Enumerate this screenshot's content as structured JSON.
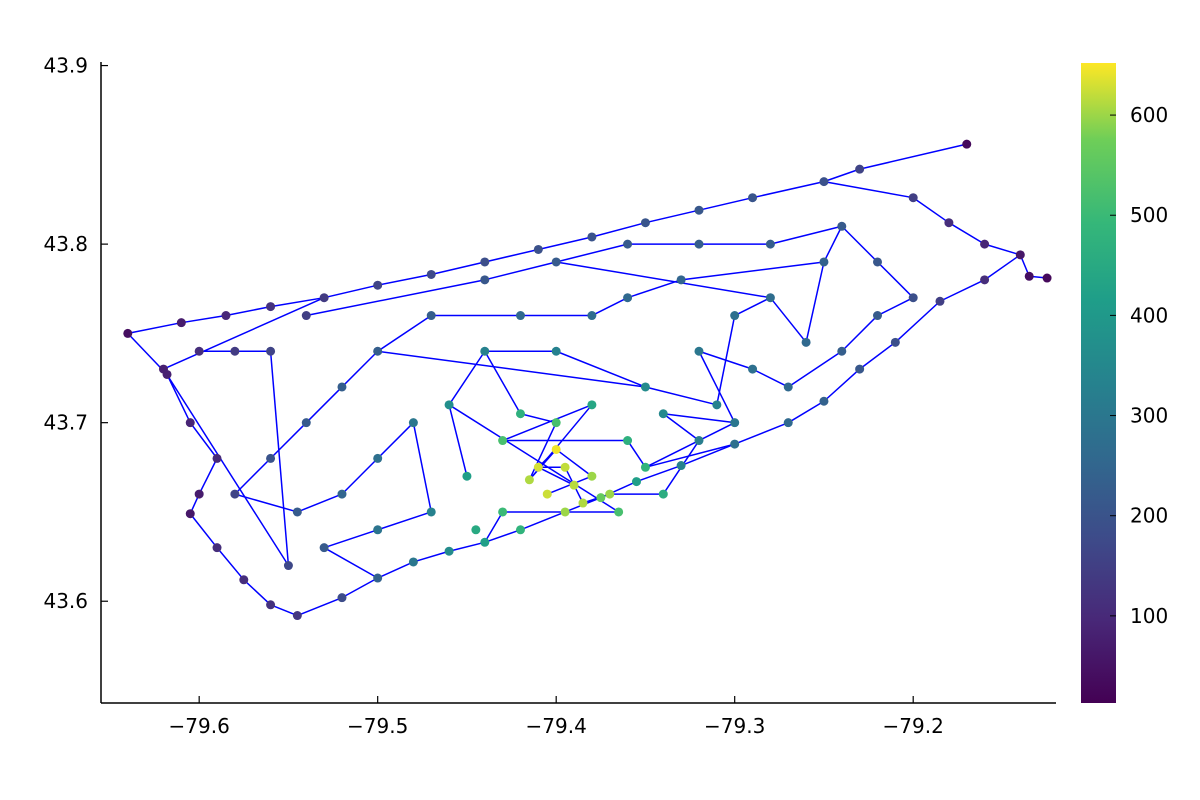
{
  "chart_data": {
    "type": "scatter",
    "title": "",
    "xlabel": "",
    "ylabel": "",
    "xlim": [
      -79.655,
      -79.12
    ],
    "ylim": [
      43.543,
      43.902
    ],
    "x_ticks": [
      -79.6,
      -79.5,
      -79.4,
      -79.3,
      -79.2
    ],
    "x_tick_labels": [
      "−79.6",
      "−79.5",
      "−79.4",
      "−79.3",
      "−79.2"
    ],
    "y_ticks": [
      43.6,
      43.7,
      43.8,
      43.9
    ],
    "y_tick_labels": [
      "43.6",
      "43.7",
      "43.8",
      "43.9"
    ],
    "grid": false,
    "legend": "none",
    "edge_color": "#0000ff",
    "colormap": "viridis",
    "colorbar": {
      "range": [
        13,
        652
      ],
      "ticks": [
        100,
        200,
        300,
        400,
        500,
        600
      ],
      "tick_labels": [
        "100",
        "200",
        "300",
        "400",
        "500",
        "600"
      ]
    },
    "series": [
      {
        "points": [
          [
            -79.64,
            43.75,
            40
          ],
          [
            -79.61,
            43.756,
            70
          ],
          [
            -79.585,
            43.76,
            95
          ],
          [
            -79.56,
            43.765,
            120
          ],
          [
            -79.53,
            43.77,
            140
          ],
          [
            -79.5,
            43.777,
            160
          ],
          [
            -79.47,
            43.783,
            175
          ],
          [
            -79.44,
            43.79,
            185
          ],
          [
            -79.41,
            43.797,
            195
          ],
          [
            -79.38,
            43.804,
            200
          ],
          [
            -79.35,
            43.812,
            205
          ],
          [
            -79.32,
            43.819,
            210
          ],
          [
            -79.29,
            43.826,
            205
          ],
          [
            -79.25,
            43.835,
            195
          ],
          [
            -79.23,
            43.842,
            160
          ],
          [
            -79.17,
            43.856,
            30
          ],
          [
            -79.2,
            43.826,
            150
          ],
          [
            -79.18,
            43.812,
            110
          ],
          [
            -79.16,
            43.8,
            90
          ],
          [
            -79.14,
            43.794,
            60
          ],
          [
            -79.135,
            43.782,
            40
          ],
          [
            -79.125,
            43.781,
            30
          ],
          [
            -79.16,
            43.78,
            110
          ],
          [
            -79.185,
            43.768,
            150
          ],
          [
            -79.21,
            43.745,
            190
          ],
          [
            -79.23,
            43.73,
            210
          ],
          [
            -79.25,
            43.712,
            240
          ],
          [
            -79.27,
            43.7,
            260
          ],
          [
            -79.3,
            43.688,
            280
          ],
          [
            -79.33,
            43.676,
            330
          ],
          [
            -79.355,
            43.667,
            420
          ],
          [
            -79.375,
            43.658,
            560
          ],
          [
            -79.395,
            43.65,
            600
          ],
          [
            -79.42,
            43.64,
            480
          ],
          [
            -79.44,
            43.633,
            420
          ],
          [
            -79.46,
            43.628,
            360
          ],
          [
            -79.48,
            43.622,
            300
          ],
          [
            -79.5,
            43.613,
            240
          ],
          [
            -79.52,
            43.602,
            180
          ],
          [
            -79.545,
            43.592,
            130
          ],
          [
            -79.56,
            43.598,
            120
          ],
          [
            -79.575,
            43.612,
            110
          ],
          [
            -79.59,
            43.63,
            110
          ],
          [
            -79.605,
            43.649,
            60
          ],
          [
            -79.6,
            43.66,
            70
          ],
          [
            -79.59,
            43.68,
            100
          ],
          [
            -79.605,
            43.7,
            90
          ],
          [
            -79.618,
            43.727,
            80
          ],
          [
            -79.4,
            43.685,
            645
          ],
          [
            -79.41,
            43.675,
            630
          ],
          [
            -79.39,
            43.665,
            615
          ],
          [
            -79.385,
            43.655,
            610
          ],
          [
            -79.37,
            43.66,
            600
          ],
          [
            -79.405,
            43.66,
            625
          ],
          [
            -79.38,
            43.67,
            600
          ],
          [
            -79.395,
            43.675,
            620
          ],
          [
            -79.415,
            43.668,
            610
          ],
          [
            -79.4,
            43.7,
            520
          ],
          [
            -79.42,
            43.705,
            470
          ],
          [
            -79.38,
            43.71,
            440
          ],
          [
            -79.43,
            43.69,
            520
          ],
          [
            -79.36,
            43.69,
            470
          ],
          [
            -79.35,
            43.675,
            480
          ],
          [
            -79.45,
            43.67,
            420
          ],
          [
            -79.46,
            43.71,
            370
          ],
          [
            -79.44,
            43.74,
            330
          ],
          [
            -79.4,
            43.74,
            330
          ],
          [
            -79.35,
            43.72,
            360
          ],
          [
            -79.31,
            43.71,
            330
          ],
          [
            -79.3,
            43.76,
            280
          ],
          [
            -79.28,
            43.77,
            270
          ],
          [
            -79.26,
            43.745,
            260
          ],
          [
            -79.25,
            43.79,
            240
          ],
          [
            -79.33,
            43.78,
            250
          ],
          [
            -79.36,
            43.77,
            260
          ],
          [
            -79.38,
            43.76,
            270
          ],
          [
            -79.42,
            43.76,
            260
          ],
          [
            -79.47,
            43.76,
            230
          ],
          [
            -79.5,
            43.74,
            230
          ],
          [
            -79.52,
            43.72,
            230
          ],
          [
            -79.54,
            43.7,
            220
          ],
          [
            -79.56,
            43.68,
            200
          ],
          [
            -79.58,
            43.66,
            160
          ],
          [
            -79.545,
            43.65,
            220
          ],
          [
            -79.52,
            43.66,
            250
          ],
          [
            -79.5,
            43.68,
            280
          ],
          [
            -79.48,
            43.7,
            300
          ],
          [
            -79.47,
            43.65,
            330
          ],
          [
            -79.5,
            43.64,
            290
          ],
          [
            -79.53,
            43.63,
            220
          ],
          [
            -79.55,
            43.62,
            170
          ],
          [
            -79.56,
            43.74,
            160
          ],
          [
            -79.58,
            43.74,
            140
          ],
          [
            -79.6,
            43.74,
            110
          ],
          [
            -79.62,
            43.73,
            80
          ],
          [
            -79.54,
            43.76,
            150
          ],
          [
            -79.44,
            43.78,
            210
          ],
          [
            -79.4,
            43.79,
            220
          ],
          [
            -79.36,
            43.8,
            220
          ],
          [
            -79.32,
            43.8,
            230
          ],
          [
            -79.28,
            43.8,
            230
          ],
          [
            -79.24,
            43.81,
            220
          ],
          [
            -79.22,
            43.79,
            210
          ],
          [
            -79.2,
            43.77,
            190
          ],
          [
            -79.22,
            43.76,
            220
          ],
          [
            -79.24,
            43.74,
            230
          ],
          [
            -79.27,
            43.72,
            260
          ],
          [
            -79.29,
            43.73,
            280
          ],
          [
            -79.32,
            43.74,
            300
          ],
          [
            -79.3,
            43.7,
            300
          ],
          [
            -79.34,
            43.705,
            350
          ],
          [
            -79.32,
            43.69,
            320
          ],
          [
            -79.34,
            43.66,
            460
          ],
          [
            -79.365,
            43.65,
            520
          ],
          [
            -79.43,
            43.65,
            500
          ],
          [
            -79.445,
            43.64,
            450
          ]
        ]
      }
    ],
    "edges": [
      [
        0,
        1
      ],
      [
        1,
        2
      ],
      [
        2,
        3
      ],
      [
        3,
        4
      ],
      [
        4,
        5
      ],
      [
        5,
        6
      ],
      [
        6,
        7
      ],
      [
        7,
        8
      ],
      [
        8,
        9
      ],
      [
        9,
        10
      ],
      [
        10,
        11
      ],
      [
        11,
        12
      ],
      [
        12,
        13
      ],
      [
        13,
        14
      ],
      [
        14,
        15
      ],
      [
        13,
        16
      ],
      [
        16,
        17
      ],
      [
        17,
        18
      ],
      [
        18,
        19
      ],
      [
        19,
        20
      ],
      [
        20,
        21
      ],
      [
        19,
        22
      ],
      [
        22,
        23
      ],
      [
        23,
        24
      ],
      [
        24,
        25
      ],
      [
        25,
        26
      ],
      [
        26,
        27
      ],
      [
        27,
        28
      ],
      [
        28,
        29
      ],
      [
        29,
        30
      ],
      [
        30,
        31
      ],
      [
        31,
        32
      ],
      [
        32,
        33
      ],
      [
        33,
        34
      ],
      [
        34,
        35
      ],
      [
        35,
        36
      ],
      [
        36,
        37
      ],
      [
        37,
        38
      ],
      [
        38,
        39
      ],
      [
        39,
        40
      ],
      [
        40,
        41
      ],
      [
        41,
        42
      ],
      [
        42,
        43
      ],
      [
        43,
        44
      ],
      [
        44,
        45
      ],
      [
        45,
        46
      ],
      [
        46,
        47
      ],
      [
        47,
        0
      ],
      [
        48,
        49
      ],
      [
        49,
        50
      ],
      [
        50,
        51
      ],
      [
        51,
        52
      ],
      [
        48,
        54
      ],
      [
        54,
        53
      ],
      [
        49,
        55
      ],
      [
        55,
        50
      ],
      [
        48,
        56
      ],
      [
        56,
        57
      ],
      [
        57,
        58
      ],
      [
        58,
        65
      ],
      [
        56,
        59
      ],
      [
        59,
        60
      ],
      [
        60,
        61
      ],
      [
        61,
        62
      ],
      [
        62,
        28
      ],
      [
        64,
        65
      ],
      [
        65,
        66
      ],
      [
        66,
        67
      ],
      [
        67,
        68
      ],
      [
        68,
        69
      ],
      [
        69,
        70
      ],
      [
        70,
        71
      ],
      [
        71,
        72
      ],
      [
        72,
        73
      ],
      [
        73,
        74
      ],
      [
        74,
        75
      ],
      [
        75,
        76
      ],
      [
        76,
        77
      ],
      [
        77,
        78
      ],
      [
        78,
        79
      ],
      [
        79,
        80
      ],
      [
        80,
        81
      ],
      [
        81,
        82
      ],
      [
        82,
        83
      ],
      [
        83,
        84
      ],
      [
        84,
        85
      ],
      [
        85,
        86
      ],
      [
        86,
        87
      ],
      [
        87,
        88
      ],
      [
        88,
        89
      ],
      [
        89,
        37
      ],
      [
        90,
        91
      ],
      [
        91,
        92
      ],
      [
        92,
        93
      ],
      [
        90,
        94
      ],
      [
        94,
        4
      ],
      [
        95,
        96
      ],
      [
        96,
        97
      ],
      [
        97,
        98
      ],
      [
        98,
        99
      ],
      [
        99,
        100
      ],
      [
        100,
        101
      ],
      [
        101,
        102
      ],
      [
        102,
        103
      ],
      [
        103,
        104
      ],
      [
        104,
        105
      ],
      [
        105,
        106
      ],
      [
        106,
        107
      ],
      [
        107,
        108
      ],
      [
        108,
        109
      ],
      [
        109,
        110
      ],
      [
        110,
        111
      ],
      [
        111,
        112
      ],
      [
        112,
        52
      ],
      [
        113,
        114
      ],
      [
        114,
        34
      ],
      [
        63,
        64
      ],
      [
        64,
        113
      ],
      [
        62,
        109
      ],
      [
        67,
        78
      ],
      [
        70,
        97
      ],
      [
        72,
        101
      ]
    ]
  }
}
